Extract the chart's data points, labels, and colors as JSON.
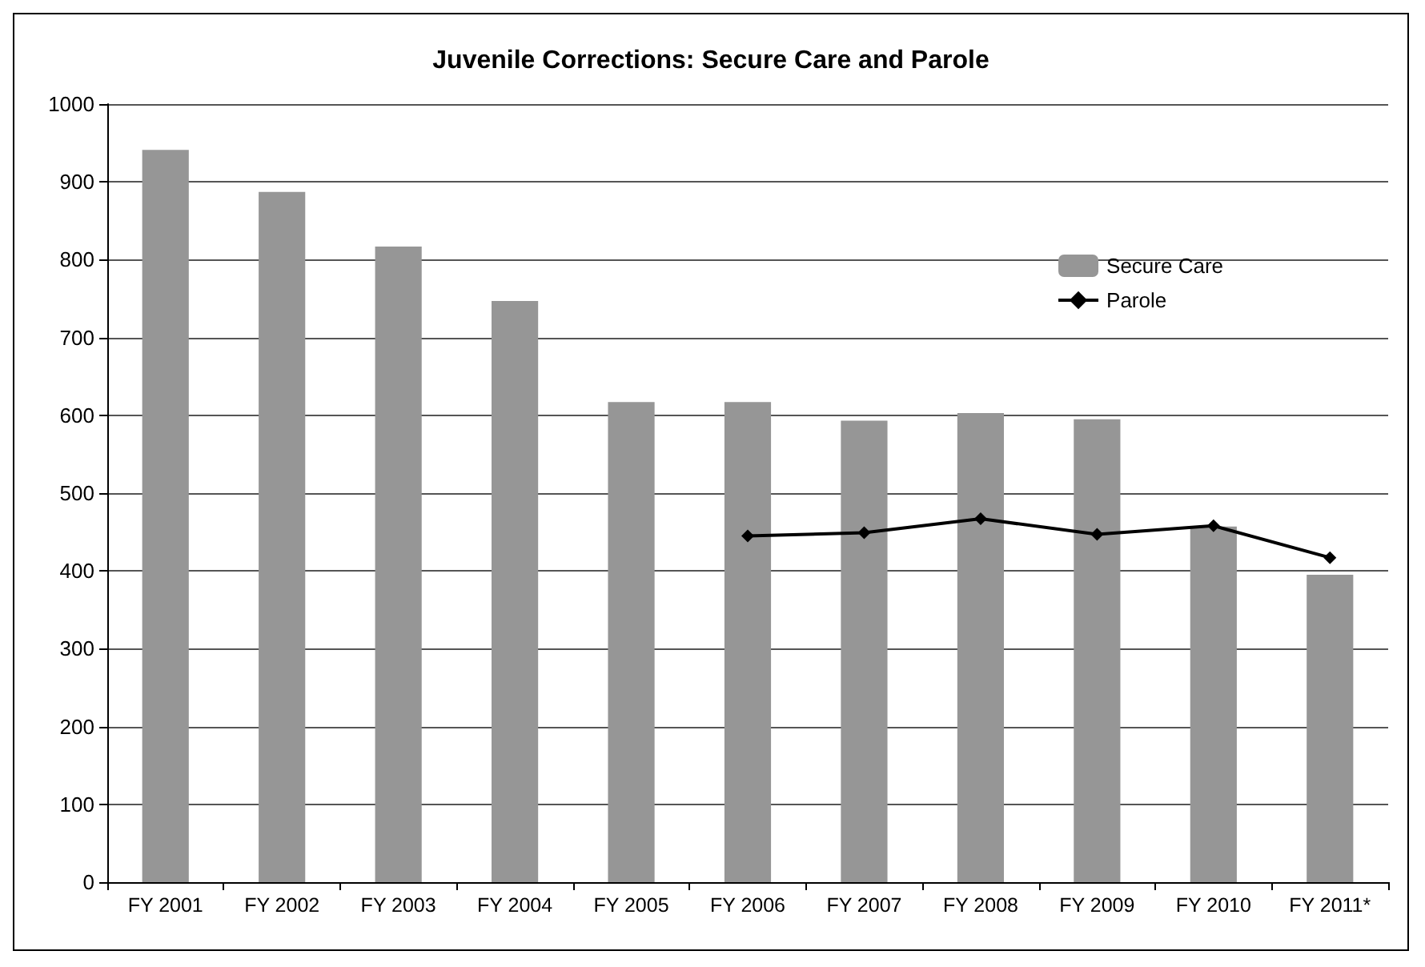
{
  "chart_data": {
    "type": "bar",
    "title": "Juvenile Corrections: Secure Care and Parole",
    "categories": [
      "FY 2001",
      "FY 2002",
      "FY 2003",
      "FY 2004",
      "FY 2005",
      "FY 2006",
      "FY 2007",
      "FY 2008",
      "FY 2009",
      "FY 2010",
      "FY 2011*"
    ],
    "series": [
      {
        "name": "Secure Care",
        "color": "#969696",
        "values": [
          941,
          887,
          817,
          747,
          617,
          617,
          593,
          603,
          595,
          457,
          395
        ]
      },
      {
        "name": "Parole",
        "type": "line",
        "color": "#000000",
        "marker": "diamond",
        "values": [
          null,
          null,
          null,
          null,
          null,
          445,
          449,
          467,
          447,
          458,
          417
        ]
      }
    ],
    "ylim": [
      0,
      1000
    ],
    "yticks": [
      0,
      100,
      200,
      300,
      400,
      500,
      600,
      700,
      800,
      900,
      1000
    ],
    "grid": "y",
    "legend": "top right"
  }
}
